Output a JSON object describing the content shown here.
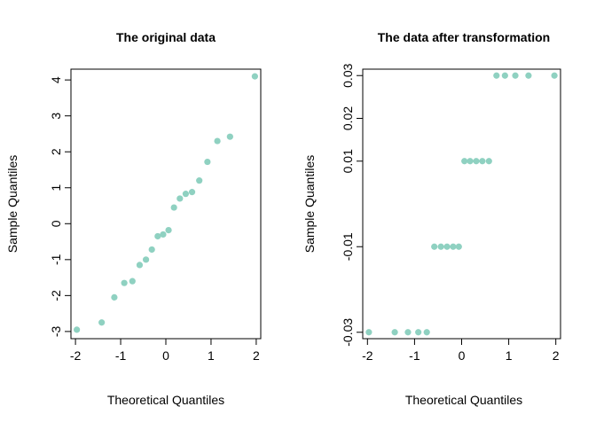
{
  "point_color": "#8fd1c1",
  "chart_data": [
    {
      "type": "scatter",
      "title": "The original data",
      "xlabel": "Theoretical Quantiles",
      "ylabel": "Sample Quantiles",
      "xlim": [
        -2.1,
        2.1
      ],
      "ylim": [
        -3.2,
        4.3
      ],
      "xticks": [
        -2,
        -1,
        0,
        1,
        2
      ],
      "yticks": [
        -3,
        -2,
        -1,
        0,
        1,
        2,
        3,
        4
      ],
      "xtick_labels": [
        "-2",
        "-1",
        "0",
        "1",
        "2"
      ],
      "ytick_labels": [
        "-3",
        "-2",
        "-1",
        "0",
        "1",
        "2",
        "3",
        "4"
      ],
      "x": [
        -1.97,
        -1.42,
        -1.14,
        -0.92,
        -0.74,
        -0.58,
        -0.44,
        -0.31,
        -0.18,
        -0.06,
        0.06,
        0.18,
        0.31,
        0.44,
        0.58,
        0.74,
        0.92,
        1.14,
        1.42,
        1.97
      ],
      "y": [
        -2.95,
        -2.75,
        -2.05,
        -1.65,
        -1.6,
        -1.15,
        -1.0,
        -0.72,
        -0.35,
        -0.3,
        -0.18,
        0.45,
        0.7,
        0.83,
        0.88,
        1.2,
        1.72,
        2.3,
        2.42,
        4.1
      ]
    },
    {
      "type": "scatter",
      "title": "The data after transformation",
      "xlabel": "Theoretical Quantiles",
      "ylabel": "Sample Quantiles",
      "xlim": [
        -2.1,
        2.1
      ],
      "ylim": [
        -0.0315,
        0.0315
      ],
      "xticks": [
        -2,
        -1,
        0,
        1,
        2
      ],
      "yticks": [
        -0.03,
        -0.01,
        0.01,
        0.02,
        0.03
      ],
      "xtick_labels": [
        "-2",
        "-1",
        "0",
        "1",
        "2"
      ],
      "ytick_labels": [
        "-0.03",
        "-0.01",
        "0.01",
        "0.02",
        "0.03"
      ],
      "x": [
        -1.97,
        -1.42,
        -1.14,
        -0.92,
        -0.74,
        -0.58,
        -0.44,
        -0.31,
        -0.18,
        -0.06,
        0.06,
        0.18,
        0.31,
        0.44,
        0.58,
        0.74,
        0.92,
        1.14,
        1.42,
        1.97
      ],
      "y": [
        -0.03,
        -0.03,
        -0.03,
        -0.03,
        -0.03,
        -0.01,
        -0.01,
        -0.01,
        -0.01,
        -0.01,
        0.01,
        0.01,
        0.01,
        0.01,
        0.01,
        0.03,
        0.03,
        0.03,
        0.03,
        0.03
      ]
    }
  ]
}
